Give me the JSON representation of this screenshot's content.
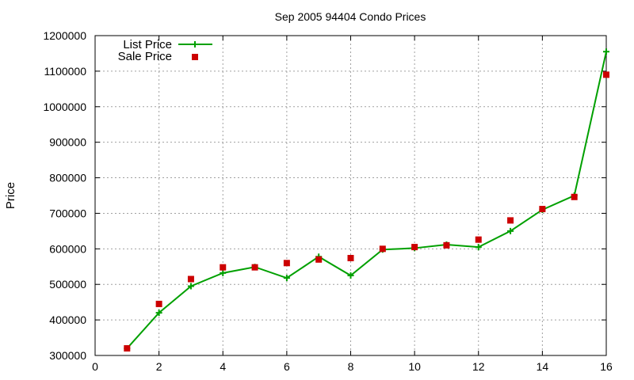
{
  "chart_data": {
    "type": "line",
    "title": "Sep 2005 94404 Condo Prices",
    "xlabel": "",
    "ylabel": "Price",
    "xlim": [
      0,
      16
    ],
    "ylim": [
      300000,
      1200000
    ],
    "xticks": [
      0,
      2,
      4,
      6,
      8,
      10,
      12,
      14,
      16
    ],
    "yticks": [
      300000,
      400000,
      500000,
      600000,
      700000,
      800000,
      900000,
      1000000,
      1100000,
      1200000
    ],
    "grid": true,
    "legend_position": "top-left",
    "series": [
      {
        "name": "List Price",
        "style": "line-with-plus-markers",
        "color": "#00a000",
        "x": [
          1,
          2,
          3,
          4,
          5,
          6,
          7,
          8,
          9,
          10,
          11,
          12,
          13,
          14,
          15,
          16
        ],
        "values": [
          320000,
          420000,
          495000,
          532000,
          549000,
          518000,
          578000,
          525000,
          598000,
          602000,
          612000,
          605000,
          650000,
          710000,
          750000,
          1155000
        ]
      },
      {
        "name": "Sale Price",
        "style": "square-points",
        "color": "#cc0000",
        "x": [
          1,
          2,
          3,
          4,
          5,
          6,
          7,
          8,
          9,
          10,
          11,
          12,
          13,
          14,
          15,
          16
        ],
        "values": [
          320000,
          445000,
          515000,
          548000,
          548000,
          560000,
          570000,
          574000,
          600000,
          605000,
          610000,
          626000,
          680000,
          712000,
          746000,
          1090000
        ]
      }
    ]
  }
}
